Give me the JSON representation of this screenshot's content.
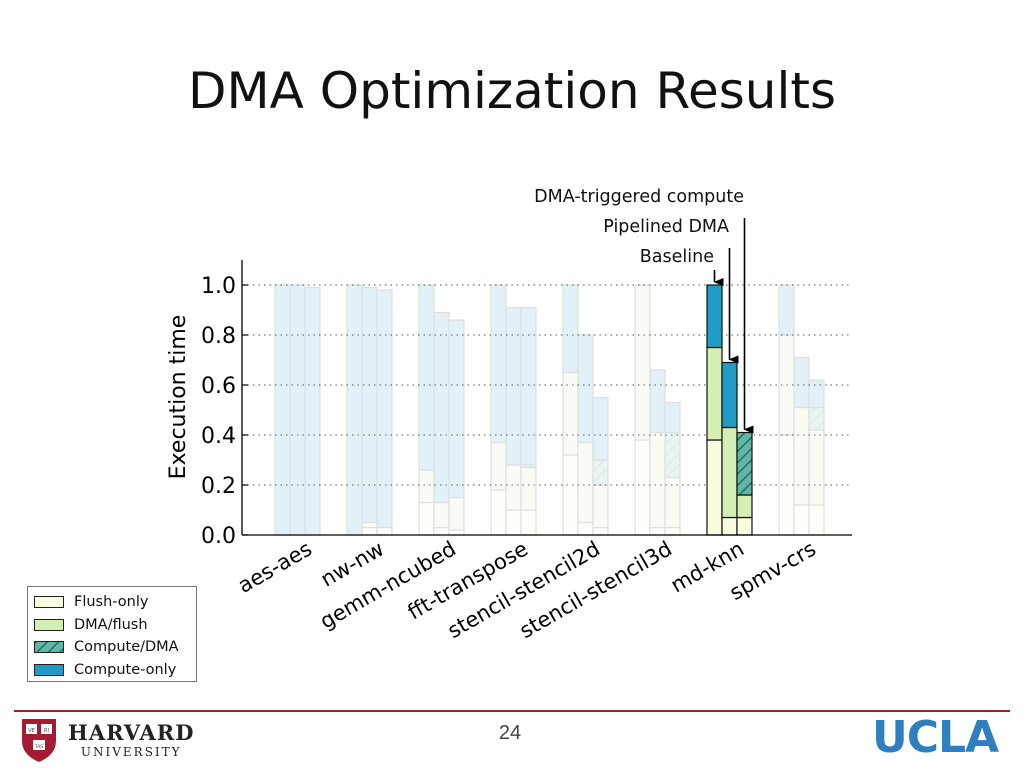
{
  "slide": {
    "title": "DMA Optimization Results",
    "page_number": "24"
  },
  "logos": {
    "harvard_name": "HARVARD",
    "harvard_sub": "UNIVERSITY",
    "harvard_shield_text": [
      "VE",
      "RI",
      "TAS"
    ],
    "ucla": "UCLA",
    "harvard_color": "#a51c30",
    "ucla_color": "#2d7fc0"
  },
  "chart_data": {
    "type": "bar",
    "stacked": true,
    "ylabel": "Execution time",
    "ylim": [
      0,
      1.1
    ],
    "yticks": [
      "0.0",
      "0.2",
      "0.4",
      "0.6",
      "0.8",
      "1.0"
    ],
    "grid": "dotted",
    "legend_position": "bottom-left, outside plot",
    "categories": [
      "aes-aes",
      "nw-nw",
      "gemm-ncubed",
      "fft-transpose",
      "stencil-stencil2d",
      "stencil-stencil3d",
      "md-knn",
      "spmv-crs"
    ],
    "variants": [
      "Baseline",
      "Pipelined DMA",
      "DMA-triggered compute"
    ],
    "highlighted_category": "md-knn",
    "segment_names": [
      "Flush-only",
      "DMA/flush",
      "Compute/DMA",
      "Compute-only"
    ],
    "segment_colors": [
      "#fbfbe0",
      "#d4eeb3",
      "#5db8a5",
      "#1f9bc5"
    ],
    "segment_patterns": [
      "solid",
      "solid",
      "hatched",
      "solid"
    ],
    "values": {
      "aes-aes": [
        [
          0,
          0,
          0,
          1.0
        ],
        [
          0,
          0,
          0,
          1.0
        ],
        [
          0,
          0,
          0,
          0.99
        ]
      ],
      "nw-nw": [
        [
          0,
          0,
          0,
          1.0
        ],
        [
          0.03,
          0.02,
          0,
          0.94
        ],
        [
          0,
          0.03,
          0,
          0.95
        ]
      ],
      "gemm-ncubed": [
        [
          0.13,
          0.13,
          0,
          0.74
        ],
        [
          0.03,
          0.1,
          0,
          0.76
        ],
        [
          0.02,
          0.13,
          0,
          0.71
        ]
      ],
      "fft-transpose": [
        [
          0.18,
          0.19,
          0,
          0.63
        ],
        [
          0.1,
          0.18,
          0,
          0.63
        ],
        [
          0.1,
          0.17,
          0.01,
          0.63
        ]
      ],
      "stencil-stencil2d": [
        [
          0.32,
          0.33,
          0,
          0.35
        ],
        [
          0.05,
          0.32,
          0,
          0.43
        ],
        [
          0.03,
          0.17,
          0.1,
          0.25
        ]
      ],
      "stencil-stencil3d": [
        [
          0.38,
          0.62,
          0,
          0.0
        ],
        [
          0.03,
          0.38,
          0,
          0.25
        ],
        [
          0.03,
          0.2,
          0.18,
          0.12
        ]
      ],
      "md-knn": [
        [
          0.38,
          0.37,
          0,
          0.25
        ],
        [
          0.07,
          0.36,
          0,
          0.26
        ],
        [
          0.07,
          0.09,
          0.25,
          0.0
        ]
      ],
      "spmv-crs": [
        [
          0.4,
          0.4,
          0,
          0.2
        ],
        [
          0.12,
          0.39,
          0,
          0.2
        ],
        [
          0.12,
          0.3,
          0.09,
          0.11
        ]
      ]
    },
    "annotations": [
      {
        "text": "DMA-triggered compute",
        "points_to": "md-knn / DMA-triggered compute"
      },
      {
        "text": "Pipelined DMA",
        "points_to": "md-knn / Pipelined DMA"
      },
      {
        "text": "Baseline",
        "points_to": "md-knn / Baseline"
      }
    ]
  }
}
